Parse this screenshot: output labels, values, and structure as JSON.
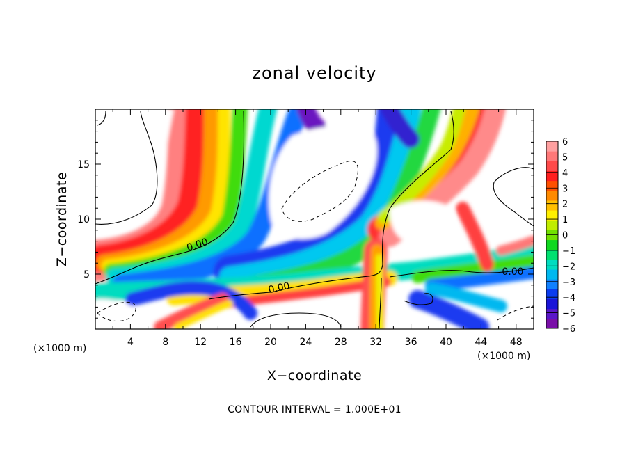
{
  "chart_data": {
    "type": "heatmap",
    "title": "zonal velocity",
    "xlabel": "X−coordinate",
    "ylabel": "Z−coordinate",
    "x_unit_left": "(×1000 m)",
    "x_unit_right": "(×1000 m)",
    "footer": "CONTOUR INTERVAL = 1.000E+01",
    "xlim": [
      0,
      50
    ],
    "ylim": [
      0,
      20
    ],
    "x_ticks": [
      4,
      8,
      12,
      16,
      20,
      24,
      28,
      32,
      36,
      40,
      44,
      48
    ],
    "y_ticks": [
      5,
      10,
      15
    ],
    "contour_labels": [
      "0.00",
      "0.00",
      "0.00"
    ],
    "colorbar": {
      "min": -6,
      "max": 6,
      "ticks": [
        6,
        5,
        4,
        3,
        2,
        1,
        0,
        -1,
        -2,
        -3,
        -4,
        -5,
        -6
      ],
      "tick_labels": [
        "6",
        "5",
        "4",
        "3",
        "2",
        "1",
        "0",
        "−1",
        "−2",
        "−3",
        "−4",
        "−5",
        "−6"
      ],
      "colors": [
        "#7a0fa8",
        "#5a16c8",
        "#1a14d8",
        "#0a3cf0",
        "#1080ff",
        "#00b8f0",
        "#00dcc0",
        "#00e070",
        "#10d820",
        "#70e000",
        "#c0ec00",
        "#fff000",
        "#ffc000",
        "#ff8a00",
        "#ff5000",
        "#ff1e1e",
        "#ff4a4a",
        "#ff7878",
        "#ffa0a0"
      ]
    }
  }
}
